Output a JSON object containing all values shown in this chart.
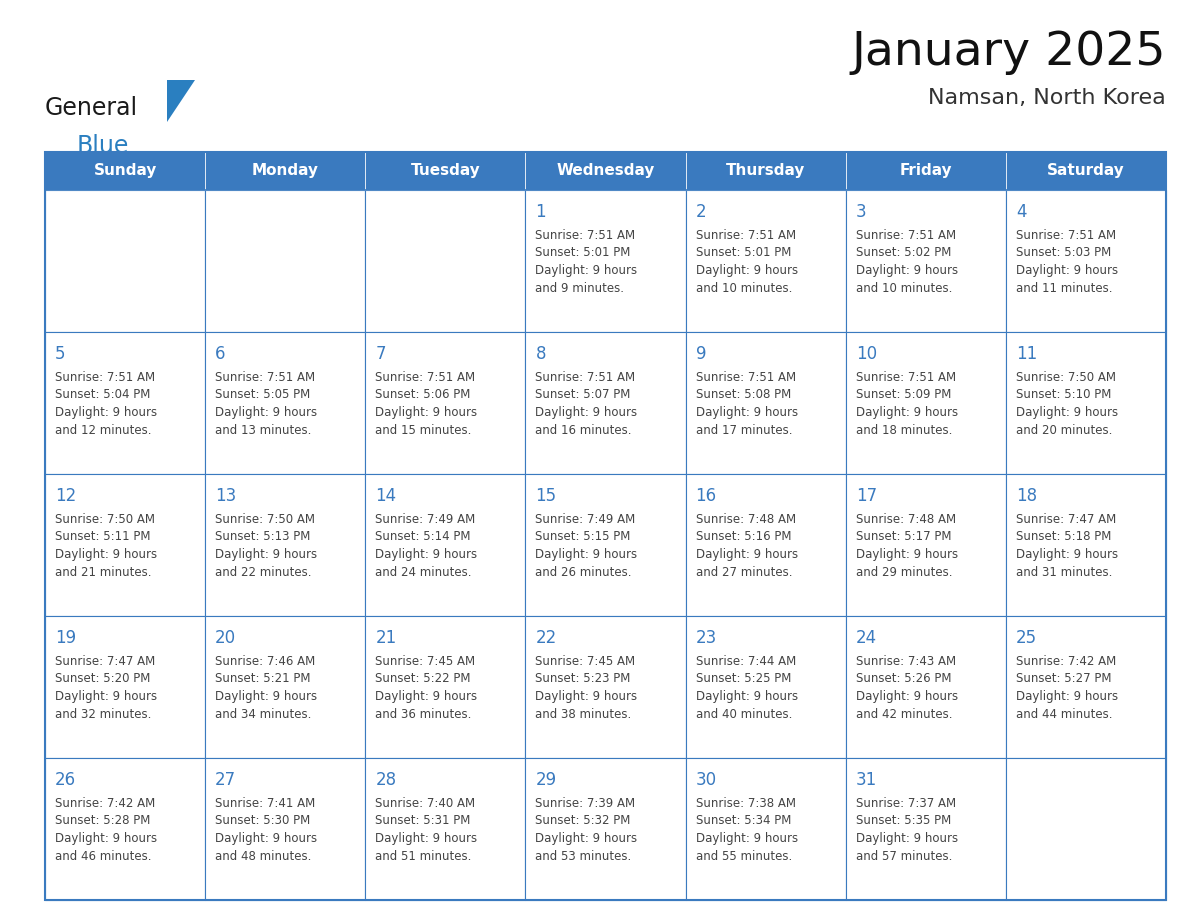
{
  "title": "January 2025",
  "subtitle": "Namsan, North Korea",
  "days_of_week": [
    "Sunday",
    "Monday",
    "Tuesday",
    "Wednesday",
    "Thursday",
    "Friday",
    "Saturday"
  ],
  "header_bg": "#3a7abf",
  "header_text": "#ffffff",
  "border_color": "#3a7abf",
  "day_number_color": "#3a7abf",
  "cell_text_color": "#444444",
  "calendar_data": [
    [
      null,
      null,
      null,
      {
        "day": 1,
        "sunrise": "7:51 AM",
        "sunset": "5:01 PM",
        "daylight": "9 hours and 9 minutes."
      },
      {
        "day": 2,
        "sunrise": "7:51 AM",
        "sunset": "5:01 PM",
        "daylight": "9 hours and 10 minutes."
      },
      {
        "day": 3,
        "sunrise": "7:51 AM",
        "sunset": "5:02 PM",
        "daylight": "9 hours and 10 minutes."
      },
      {
        "day": 4,
        "sunrise": "7:51 AM",
        "sunset": "5:03 PM",
        "daylight": "9 hours and 11 minutes."
      }
    ],
    [
      {
        "day": 5,
        "sunrise": "7:51 AM",
        "sunset": "5:04 PM",
        "daylight": "9 hours and 12 minutes."
      },
      {
        "day": 6,
        "sunrise": "7:51 AM",
        "sunset": "5:05 PM",
        "daylight": "9 hours and 13 minutes."
      },
      {
        "day": 7,
        "sunrise": "7:51 AM",
        "sunset": "5:06 PM",
        "daylight": "9 hours and 15 minutes."
      },
      {
        "day": 8,
        "sunrise": "7:51 AM",
        "sunset": "5:07 PM",
        "daylight": "9 hours and 16 minutes."
      },
      {
        "day": 9,
        "sunrise": "7:51 AM",
        "sunset": "5:08 PM",
        "daylight": "9 hours and 17 minutes."
      },
      {
        "day": 10,
        "sunrise": "7:51 AM",
        "sunset": "5:09 PM",
        "daylight": "9 hours and 18 minutes."
      },
      {
        "day": 11,
        "sunrise": "7:50 AM",
        "sunset": "5:10 PM",
        "daylight": "9 hours and 20 minutes."
      }
    ],
    [
      {
        "day": 12,
        "sunrise": "7:50 AM",
        "sunset": "5:11 PM",
        "daylight": "9 hours and 21 minutes."
      },
      {
        "day": 13,
        "sunrise": "7:50 AM",
        "sunset": "5:13 PM",
        "daylight": "9 hours and 22 minutes."
      },
      {
        "day": 14,
        "sunrise": "7:49 AM",
        "sunset": "5:14 PM",
        "daylight": "9 hours and 24 minutes."
      },
      {
        "day": 15,
        "sunrise": "7:49 AM",
        "sunset": "5:15 PM",
        "daylight": "9 hours and 26 minutes."
      },
      {
        "day": 16,
        "sunrise": "7:48 AM",
        "sunset": "5:16 PM",
        "daylight": "9 hours and 27 minutes."
      },
      {
        "day": 17,
        "sunrise": "7:48 AM",
        "sunset": "5:17 PM",
        "daylight": "9 hours and 29 minutes."
      },
      {
        "day": 18,
        "sunrise": "7:47 AM",
        "sunset": "5:18 PM",
        "daylight": "9 hours and 31 minutes."
      }
    ],
    [
      {
        "day": 19,
        "sunrise": "7:47 AM",
        "sunset": "5:20 PM",
        "daylight": "9 hours and 32 minutes."
      },
      {
        "day": 20,
        "sunrise": "7:46 AM",
        "sunset": "5:21 PM",
        "daylight": "9 hours and 34 minutes."
      },
      {
        "day": 21,
        "sunrise": "7:45 AM",
        "sunset": "5:22 PM",
        "daylight": "9 hours and 36 minutes."
      },
      {
        "day": 22,
        "sunrise": "7:45 AM",
        "sunset": "5:23 PM",
        "daylight": "9 hours and 38 minutes."
      },
      {
        "day": 23,
        "sunrise": "7:44 AM",
        "sunset": "5:25 PM",
        "daylight": "9 hours and 40 minutes."
      },
      {
        "day": 24,
        "sunrise": "7:43 AM",
        "sunset": "5:26 PM",
        "daylight": "9 hours and 42 minutes."
      },
      {
        "day": 25,
        "sunrise": "7:42 AM",
        "sunset": "5:27 PM",
        "daylight": "9 hours and 44 minutes."
      }
    ],
    [
      {
        "day": 26,
        "sunrise": "7:42 AM",
        "sunset": "5:28 PM",
        "daylight": "9 hours and 46 minutes."
      },
      {
        "day": 27,
        "sunrise": "7:41 AM",
        "sunset": "5:30 PM",
        "daylight": "9 hours and 48 minutes."
      },
      {
        "day": 28,
        "sunrise": "7:40 AM",
        "sunset": "5:31 PM",
        "daylight": "9 hours and 51 minutes."
      },
      {
        "day": 29,
        "sunrise": "7:39 AM",
        "sunset": "5:32 PM",
        "daylight": "9 hours and 53 minutes."
      },
      {
        "day": 30,
        "sunrise": "7:38 AM",
        "sunset": "5:34 PM",
        "daylight": "9 hours and 55 minutes."
      },
      {
        "day": 31,
        "sunrise": "7:37 AM",
        "sunset": "5:35 PM",
        "daylight": "9 hours and 57 minutes."
      },
      null
    ]
  ],
  "logo_general_color": "#1a1a1a",
  "logo_blue_color": "#2a7fc0",
  "fig_width": 11.88,
  "fig_height": 9.18
}
